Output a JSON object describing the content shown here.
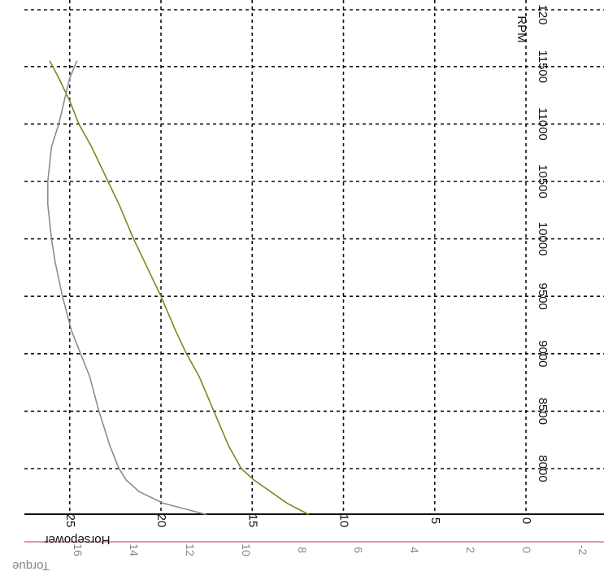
{
  "chart_data": {
    "type": "line",
    "title": "",
    "rpm_axis": {
      "label": "RPM",
      "range": [
        7600,
        12000
      ],
      "ticks": [
        8000,
        8500,
        9000,
        9500,
        10000,
        10500,
        11000,
        11500
      ],
      "tick_labels": [
        "8000",
        "8500",
        "9000",
        "9500",
        "10000",
        "10500",
        "11000",
        "11500"
      ],
      "edge_label": "120"
    },
    "horsepower_axis": {
      "label": "Horsepower",
      "range": [
        0,
        27.5
      ],
      "ticks": [
        0,
        5,
        10,
        15,
        20,
        25
      ],
      "tick_labels": [
        "0",
        "5",
        "10",
        "15",
        "20",
        "25"
      ]
    },
    "torque_axis": {
      "label": "Torque",
      "range": [
        -2,
        16
      ],
      "ticks": [
        -2,
        0,
        2,
        4,
        6,
        8,
        10,
        12,
        14,
        16
      ],
      "tick_labels": [
        "-2",
        "0",
        "2",
        "4",
        "6",
        "8",
        "10",
        "12",
        "14",
        "16"
      ],
      "color": "#c86070"
    },
    "grid": true,
    "series": [
      {
        "color": "#7a8a1e",
        "rpm": [
          7600,
          7700,
          7800,
          7900,
          8000,
          8200,
          8500,
          8800,
          9000,
          9200,
          9500,
          9800,
          10000,
          10300,
          10500,
          10800,
          11000,
          11200,
          11400,
          11550
        ],
        "value": [
          11.9,
          13.1,
          14.0,
          14.9,
          15.6,
          16.3,
          17.1,
          17.9,
          18.6,
          19.2,
          20.0,
          20.9,
          21.5,
          22.3,
          22.9,
          23.8,
          24.5,
          25.0,
          25.6,
          26.1
        ]
      },
      {
        "color": "#9a8598",
        "rpm": [
          7600,
          7700,
          7800,
          7900,
          8000,
          8200,
          8500,
          8800,
          9000,
          9200,
          9500,
          9800,
          10000,
          10300,
          10500,
          10800,
          11000,
          11200,
          11400,
          11550
        ],
        "value": [
          17.5,
          19.9,
          21.2,
          21.9,
          22.3,
          22.8,
          23.4,
          23.9,
          24.4,
          24.9,
          25.4,
          25.8,
          26.0,
          26.2,
          26.2,
          26.0,
          25.6,
          25.3,
          25.0,
          24.6
        ]
      }
    ]
  }
}
